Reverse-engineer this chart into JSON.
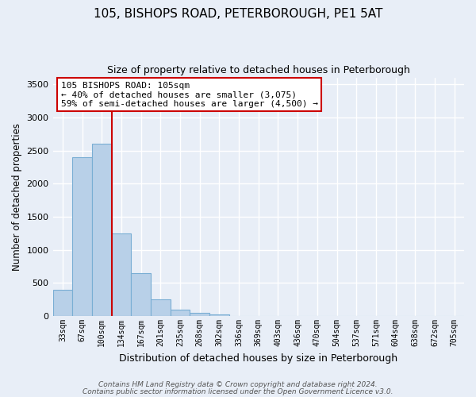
{
  "title": "105, BISHOPS ROAD, PETERBOROUGH, PE1 5AT",
  "subtitle": "Size of property relative to detached houses in Peterborough",
  "xlabel": "Distribution of detached houses by size in Peterborough",
  "ylabel": "Number of detached properties",
  "bar_values": [
    400,
    2400,
    2600,
    1250,
    650,
    250,
    100,
    50,
    30,
    0,
    0,
    0,
    0,
    0,
    0,
    0,
    0,
    0,
    0,
    0,
    0
  ],
  "categories": [
    "33sqm",
    "67sqm",
    "100sqm",
    "134sqm",
    "167sqm",
    "201sqm",
    "235sqm",
    "268sqm",
    "302sqm",
    "336sqm",
    "369sqm",
    "403sqm",
    "436sqm",
    "470sqm",
    "504sqm",
    "537sqm",
    "571sqm",
    "604sqm",
    "638sqm",
    "672sqm",
    "705sqm"
  ],
  "bar_color": "#b8d0e8",
  "bar_edge_color": "#7aaed4",
  "vline_color": "#cc0000",
  "ylim": [
    0,
    3600
  ],
  "yticks": [
    0,
    500,
    1000,
    1500,
    2000,
    2500,
    3000,
    3500
  ],
  "annotation_title": "105 BISHOPS ROAD: 105sqm",
  "annotation_line1": "← 40% of detached houses are smaller (3,075)",
  "annotation_line2": "59% of semi-detached houses are larger (4,500) →",
  "annotation_box_color": "#ffffff",
  "annotation_box_edge": "#cc0000",
  "footer1": "Contains HM Land Registry data © Crown copyright and database right 2024.",
  "footer2": "Contains public sector information licensed under the Open Government Licence v3.0.",
  "bg_color": "#e8eef7",
  "grid_color": "#ffffff",
  "figsize": [
    6.0,
    5.0
  ],
  "dpi": 100
}
